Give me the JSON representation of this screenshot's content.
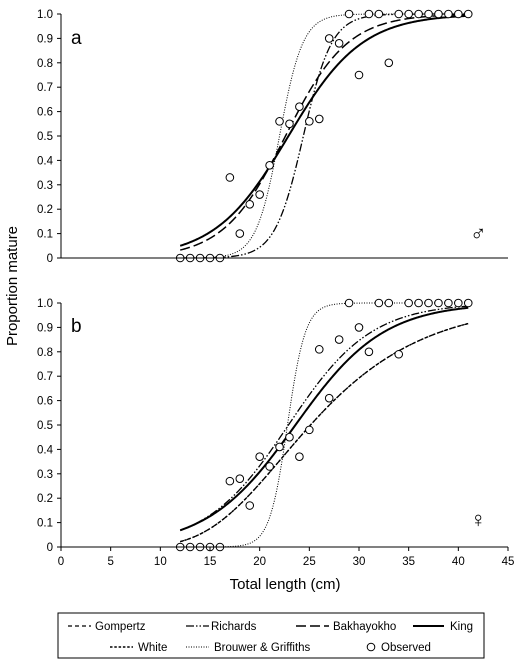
{
  "chart_data": {
    "type": "line",
    "ylabel": "Proportion mature",
    "xlabel": "Total length (cm)",
    "xlim": [
      0,
      45
    ],
    "ylim": [
      0,
      1.0
    ],
    "x_ticks": [
      "0",
      "5",
      "10",
      "15",
      "20",
      "25",
      "30",
      "35",
      "40",
      "45"
    ],
    "y_ticks": [
      "0",
      "0.1",
      "0.2",
      "0.3",
      "0.4",
      "0.5",
      "0.6",
      "0.7",
      "0.8",
      "0.9",
      "1.0"
    ],
    "grid": false,
    "legend": {
      "placement": "bottom",
      "entries": [
        {
          "key": "gompertz",
          "label": "Gompertz",
          "style": "dashed-short"
        },
        {
          "key": "richards",
          "label": "Richards",
          "style": "dash-dot-dot"
        },
        {
          "key": "bakhayokho",
          "label": "Bakhayokho",
          "style": "dashed-long"
        },
        {
          "key": "king",
          "label": "King",
          "style": "solid-thick"
        },
        {
          "key": "white",
          "label": "White",
          "style": "dotted-dense"
        },
        {
          "key": "brouwer",
          "label": "Brouwer & Griffiths",
          "style": "dotted-fine"
        },
        {
          "key": "observed",
          "label": "Observed",
          "style": "open-circle"
        }
      ]
    },
    "panels": [
      {
        "tag": "a",
        "sex_symbol": "♂",
        "x_range": [
          12,
          41
        ],
        "observed": [
          [
            12,
            0
          ],
          [
            13,
            0
          ],
          [
            14,
            0
          ],
          [
            15,
            0
          ],
          [
            16,
            0
          ],
          [
            17,
            0.33
          ],
          [
            18,
            0.1
          ],
          [
            19,
            0.22
          ],
          [
            20,
            0.26
          ],
          [
            21,
            0.38
          ],
          [
            22,
            0.56
          ],
          [
            23,
            0.55
          ],
          [
            24,
            0.62
          ],
          [
            25,
            0.56
          ],
          [
            26,
            0.57
          ],
          [
            27,
            0.9
          ],
          [
            28,
            0.88
          ],
          [
            29,
            1.0
          ],
          [
            30,
            0.75
          ],
          [
            31,
            1.0
          ],
          [
            32,
            1.0
          ],
          [
            33,
            0.8
          ],
          [
            34,
            1.0
          ],
          [
            35,
            1.0
          ],
          [
            36,
            1.0
          ],
          [
            37,
            1.0
          ],
          [
            38,
            1.0
          ],
          [
            39,
            1.0
          ],
          [
            40,
            1.0
          ],
          [
            41,
            1.0
          ]
        ],
        "series": [
          {
            "key": "king",
            "model": "logistic",
            "params": {
              "l50": 22.9,
              "k": 0.27
            }
          },
          {
            "key": "bakhayokho",
            "model": "logistic",
            "params": {
              "l50": 22.6,
              "k": 0.32
            }
          },
          {
            "key": "richards",
            "model": "logistic",
            "params": {
              "l50": 24.4,
              "k": 0.7
            }
          },
          {
            "key": "brouwer",
            "model": "logistic",
            "params": {
              "l50": 22.0,
              "k": 0.85
            }
          }
        ]
      },
      {
        "tag": "b",
        "sex_symbol": "♀",
        "x_range": [
          12,
          41
        ],
        "observed": [
          [
            12,
            0
          ],
          [
            13,
            0
          ],
          [
            14,
            0
          ],
          [
            15,
            0
          ],
          [
            16,
            0
          ],
          [
            17,
            0.27
          ],
          [
            18,
            0.28
          ],
          [
            19,
            0.17
          ],
          [
            20,
            0.37
          ],
          [
            21,
            0.33
          ],
          [
            22,
            0.41
          ],
          [
            23,
            0.45
          ],
          [
            24,
            0.37
          ],
          [
            25,
            0.48
          ],
          [
            26,
            0.81
          ],
          [
            27,
            0.61
          ],
          [
            28,
            0.85
          ],
          [
            29,
            1.0
          ],
          [
            30,
            0.9
          ],
          [
            31,
            0.8
          ],
          [
            32,
            1.0
          ],
          [
            33,
            1.0
          ],
          [
            34,
            0.79
          ],
          [
            35,
            1.0
          ],
          [
            36,
            1.0
          ],
          [
            37,
            1.0
          ],
          [
            38,
            1.0
          ],
          [
            39,
            1.0
          ],
          [
            40,
            1.0
          ],
          [
            41,
            1.0
          ]
        ],
        "series": [
          {
            "key": "king",
            "model": "logistic",
            "params": {
              "l50": 23.6,
              "k": 0.225
            }
          },
          {
            "key": "gompertz",
            "model": "gompertz",
            "params": {
              "l0": 22.3,
              "b": 0.13
            }
          },
          {
            "key": "white",
            "model": "gompertz",
            "params": {
              "l0": 22.3,
              "b": 0.13
            }
          },
          {
            "key": "richards",
            "model": "logistic",
            "params": {
              "l50": 22.9,
              "k": 0.24
            }
          },
          {
            "key": "brouwer",
            "model": "logistic",
            "params": {
              "l50": 22.8,
              "k": 1.1
            }
          }
        ]
      }
    ]
  }
}
